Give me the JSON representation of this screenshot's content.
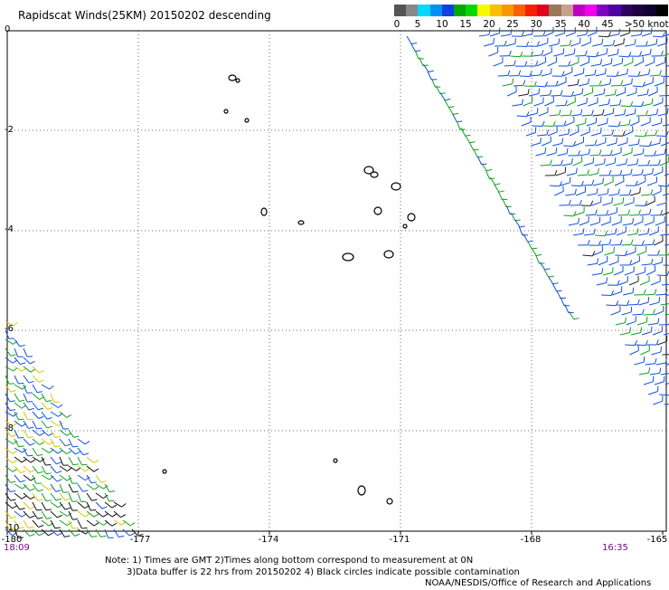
{
  "title": "Rapidscat Winds(25KM) 20150202 descending",
  "legend": {
    "labels": [
      "0",
      "5",
      "10",
      "15",
      "20",
      "25",
      "30",
      "35",
      "40",
      "45",
      ">50 knots"
    ],
    "colors": [
      "#555555",
      "#888888",
      "#00d8f8",
      "#0090f0",
      "#1040e0",
      "#00a800",
      "#00d800",
      "#f8f800",
      "#f8c000",
      "#f89800",
      "#f86000",
      "#f82000",
      "#e00020",
      "#987858",
      "#c8a090",
      "#c000c0",
      "#f000f0",
      "#8000c0",
      "#5000a0",
      "#300060",
      "#200040",
      "#100030",
      "#000000"
    ]
  },
  "map": {
    "y_labels": [
      "0",
      "-2",
      "-4",
      "-6",
      "-8",
      "-10"
    ],
    "x_labels": [
      "-180",
      "-177",
      "-174",
      "-171",
      "-168",
      "-165"
    ],
    "lat_range": [
      -10,
      0
    ],
    "lon_range": [
      -180,
      -165
    ],
    "time_left": "18:09",
    "time_right": "16:35"
  },
  "notes": [
    "Note: 1) Times are GMT 2)Times along bottom correspond to measurement at 0N",
    "3)Data buffer is 22 hrs from 20150202 4) Black circles indicate possible contamination",
    "NOAA/NESDIS/Office of Research and Applications"
  ]
}
